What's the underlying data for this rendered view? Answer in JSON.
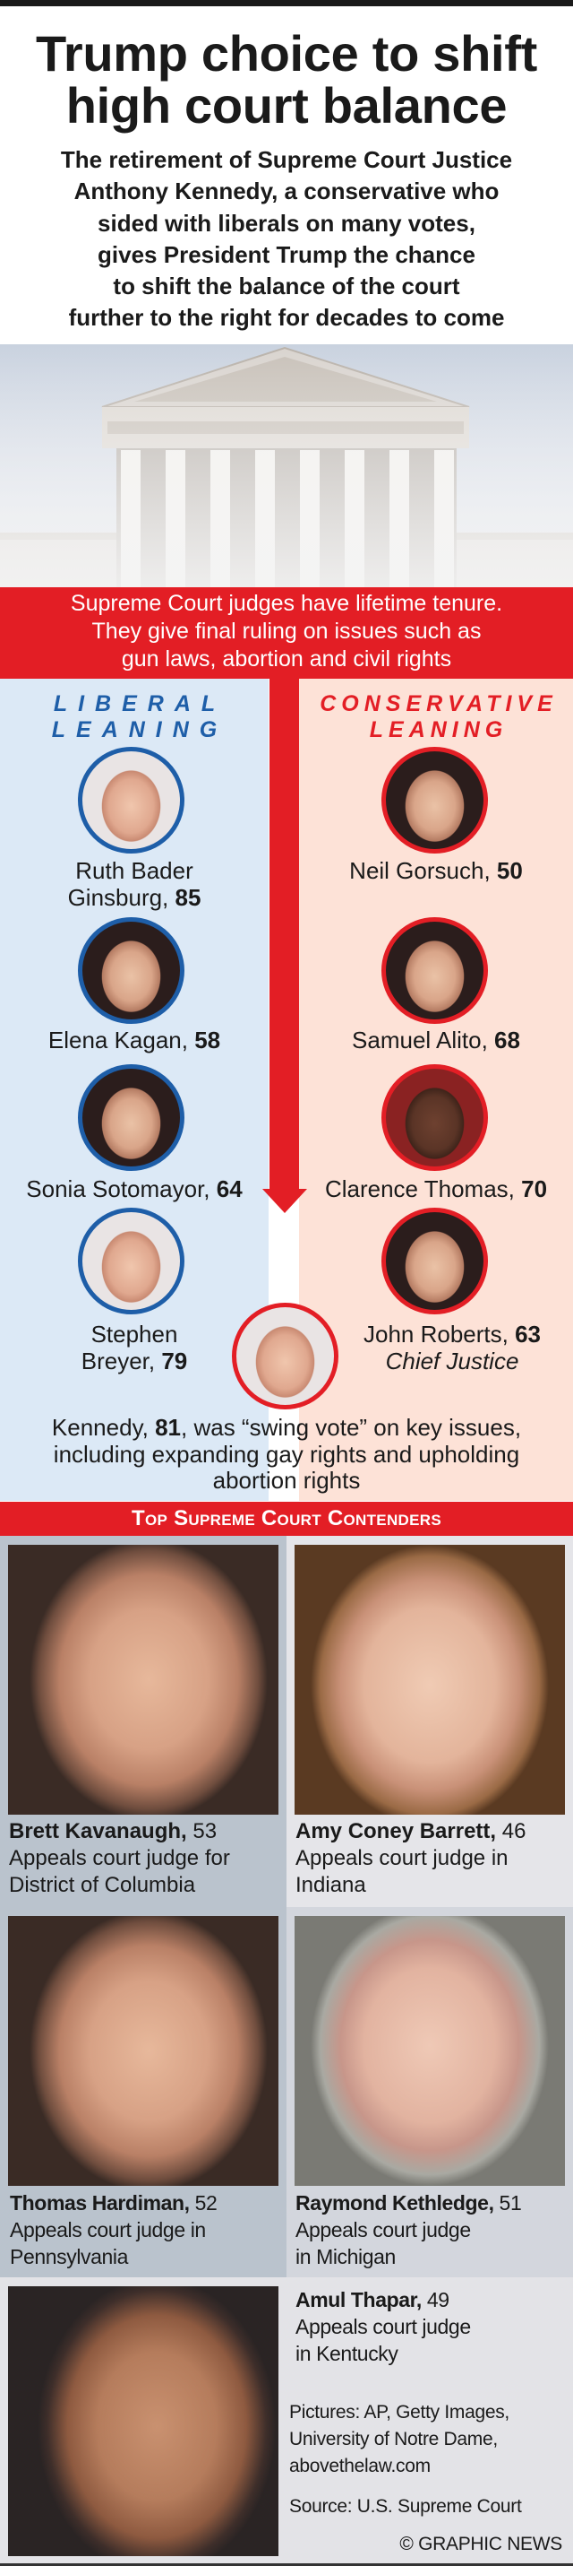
{
  "title": {
    "lines": [
      "Trump choice to shift",
      "high court balance"
    ]
  },
  "subtitle": {
    "lines": [
      "The retirement of Supreme Court Justice",
      "Anthony Kennedy, a conservative who",
      "sided with liberals on many votes,",
      "gives President Trump the chance",
      "to shift the balance of the court",
      "further to the right for decades to come"
    ]
  },
  "band": {
    "lines": [
      "Supreme Court judges have lifetime tenure.",
      "They give final ruling on issues such as",
      "gun laws, abortion and civil rights"
    ]
  },
  "liberal": {
    "header": [
      "LIBERAL",
      "LEANING"
    ],
    "color": "#1e5ea8",
    "justices": [
      {
        "name": "Ruth Bader Ginsburg, ",
        "age": "85"
      },
      {
        "name": "Elena Kagan, ",
        "age": "58"
      },
      {
        "name": "Sonia Sotomayor, ",
        "age": "64"
      },
      {
        "name": "Stephen Breyer, ",
        "age": "79"
      }
    ]
  },
  "conservative": {
    "header": [
      "CONSERVATIVE",
      "LEANING"
    ],
    "color": "#e31e25",
    "justices": [
      {
        "name": "Neil Gorsuch, ",
        "age": "50"
      },
      {
        "name": "Samuel Alito, ",
        "age": "68"
      },
      {
        "name": "Clarence Thomas, ",
        "age": "70"
      },
      {
        "name": "John Roberts, ",
        "age": "63",
        "title": "Chief Justice"
      }
    ]
  },
  "kennedy": {
    "name": "Kennedy, ",
    "age": "81",
    "text": ", was “swing vote” on key issues, including expanding gay rights and upholding abortion rights"
  },
  "contenders": {
    "header": "Top Supreme Court Contenders",
    "items": [
      {
        "name": "Brett Kavanaugh,",
        "age": " 53",
        "role": [
          "Appeals court judge for",
          "District of Columbia"
        ]
      },
      {
        "name": "Amy Coney Barrett,",
        "age": " 46",
        "role": [
          "Appeals court judge in",
          "Indiana"
        ]
      },
      {
        "name": "Thomas Hardiman,",
        "age": " 52",
        "role": [
          "Appeals court judge in",
          "Pennsylvania"
        ]
      },
      {
        "name": "Raymond Kethledge,",
        "age": " 51",
        "role": [
          "Appeals court judge",
          "in Michigan"
        ]
      },
      {
        "name": "Amul Thapar,",
        "age": " 49",
        "role": [
          "Appeals court judge",
          "in Kentucky"
        ]
      }
    ]
  },
  "credits": {
    "pictures": [
      "Pictures: AP, Getty Images,",
      "University of Notre Dame,",
      "abovethelaw.com"
    ],
    "source": "Source: U.S. Supreme Court",
    "copyright": "© GRAPHIC NEWS"
  },
  "colors": {
    "accent_red": "#e31e25",
    "liberal_blue": "#1e5ea8",
    "liberal_bg": "#dce9f6",
    "conservative_bg": "#fde2d7"
  }
}
